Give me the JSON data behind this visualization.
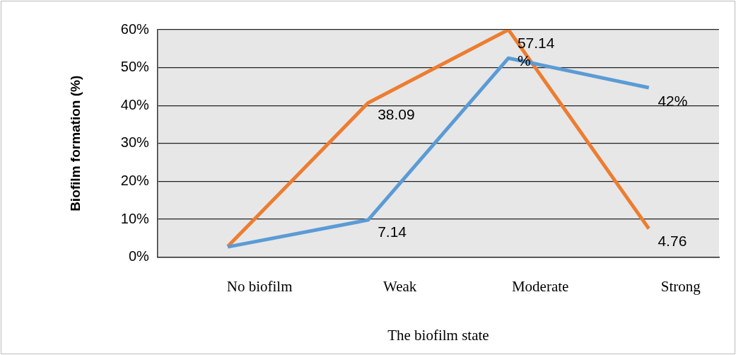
{
  "chart_data": {
    "type": "line",
    "xlabel": "The biofilm state",
    "ylabel": "Biofilm formation (%)",
    "categories": [
      "No biofilm",
      "Weak",
      "Moderate",
      "Strong"
    ],
    "series": [
      {
        "color": "#5b9bd5",
        "values": [
          2.7,
          9.8,
          52.5,
          44.7
        ]
      },
      {
        "color": "#ed7d31",
        "values": [
          2.8,
          40.7,
          60,
          7.5
        ]
      }
    ],
    "annotations": [
      "38.09",
      "7.14",
      "57.14 %",
      "42%",
      "4.76"
    ],
    "ylim": [
      0,
      60
    ],
    "yticks": [
      {
        "value": 0,
        "label": "0%"
      },
      {
        "value": 10,
        "label": "10%"
      },
      {
        "value": 20,
        "label": "20%"
      },
      {
        "value": 30,
        "label": "30%"
      },
      {
        "value": 40,
        "label": "40%"
      },
      {
        "value": 50,
        "label": "50%"
      },
      {
        "value": 60,
        "label": "60%"
      }
    ],
    "grid": "y",
    "marker": "none",
    "line_style": "solid",
    "legend": false
  }
}
